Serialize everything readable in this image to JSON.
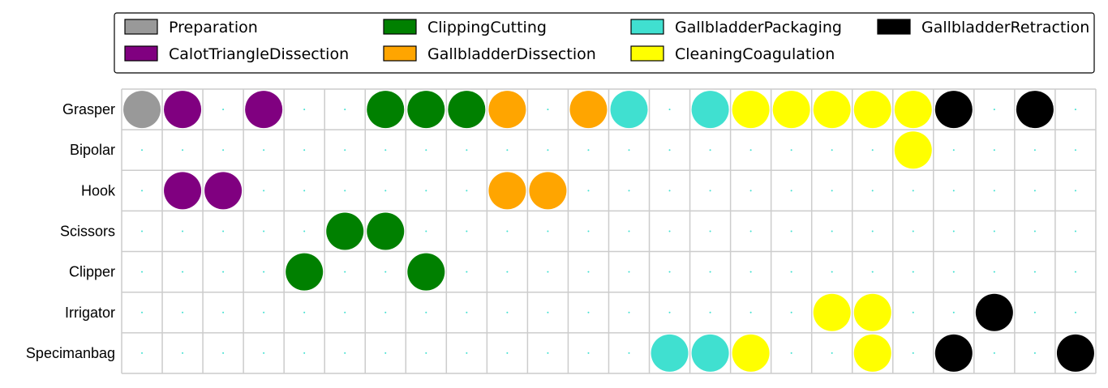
{
  "chart_data": {
    "type": "scatter",
    "title": "",
    "xlabel": "",
    "ylabel": "",
    "grid": true,
    "legend_placement": "top",
    "phases": [
      {
        "name": "Preparation",
        "color": "#999999"
      },
      {
        "name": "CalotTriangleDissection",
        "color": "#800080"
      },
      {
        "name": "ClippingCutting",
        "color": "#008000"
      },
      {
        "name": "GallbladderDissection",
        "color": "#ffa500"
      },
      {
        "name": "GallbladderPackaging",
        "color": "#40e0d0"
      },
      {
        "name": "CleaningCoagulation",
        "color": "#ffff00"
      },
      {
        "name": "GallbladderRetraction",
        "color": "#000000"
      }
    ],
    "legend_order": [
      "Preparation",
      "ClippingCutting",
      "GallbladderPackaging",
      "GallbladderRetraction",
      "CalotTriangleDissection",
      "GallbladderDissection",
      "CleaningCoagulation"
    ],
    "tools": [
      "Grasper",
      "Bipolar",
      "Hook",
      "Scissors",
      "Clipper",
      "Irrigator",
      "Specimanbag"
    ],
    "num_columns": 24,
    "rows": {
      "Grasper": [
        0,
        1,
        null,
        1,
        null,
        null,
        2,
        2,
        2,
        3,
        null,
        3,
        4,
        null,
        4,
        5,
        5,
        5,
        5,
        5,
        6,
        null,
        6,
        null
      ],
      "Bipolar": [
        null,
        null,
        null,
        null,
        null,
        null,
        null,
        null,
        null,
        null,
        null,
        null,
        null,
        null,
        null,
        null,
        null,
        null,
        null,
        5,
        null,
        null,
        null,
        null
      ],
      "Hook": [
        null,
        1,
        1,
        null,
        null,
        null,
        null,
        null,
        null,
        3,
        3,
        null,
        null,
        null,
        null,
        null,
        null,
        null,
        null,
        null,
        null,
        null,
        null,
        null
      ],
      "Scissors": [
        null,
        null,
        null,
        null,
        null,
        2,
        2,
        null,
        null,
        null,
        null,
        null,
        null,
        null,
        null,
        null,
        null,
        null,
        null,
        null,
        null,
        null,
        null,
        null
      ],
      "Clipper": [
        null,
        null,
        null,
        null,
        2,
        null,
        null,
        2,
        null,
        null,
        null,
        null,
        null,
        null,
        null,
        null,
        null,
        null,
        null,
        null,
        null,
        null,
        null,
        null
      ],
      "Irrigator": [
        null,
        null,
        null,
        null,
        null,
        null,
        null,
        null,
        null,
        null,
        null,
        null,
        null,
        null,
        null,
        null,
        null,
        5,
        5,
        null,
        null,
        6,
        null,
        null
      ],
      "Specimanbag": [
        null,
        null,
        null,
        null,
        null,
        null,
        null,
        null,
        null,
        null,
        null,
        null,
        null,
        4,
        4,
        5,
        null,
        null,
        5,
        null,
        6,
        null,
        null,
        6
      ]
    },
    "empty_marker_color": "#40e0d0"
  }
}
